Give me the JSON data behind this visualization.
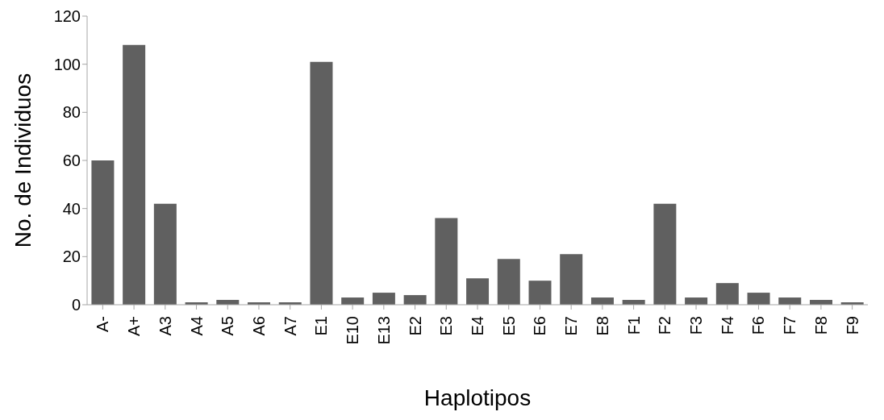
{
  "chart_data": {
    "type": "bar",
    "xlabel": "Haplotipos",
    "ylabel": "No. de Individuos",
    "categories": [
      "A-",
      "A+",
      "A3",
      "A4",
      "A5",
      "A6",
      "A7",
      "E1",
      "E10",
      "E13",
      "E2",
      "E3",
      "E4",
      "E5",
      "E6",
      "E7",
      "E8",
      "F1",
      "F2",
      "F3",
      "F4",
      "F6",
      "F7",
      "F8",
      "F9"
    ],
    "values": [
      60,
      108,
      42,
      1,
      2,
      1,
      1,
      101,
      3,
      5,
      4,
      36,
      11,
      19,
      10,
      21,
      3,
      2,
      42,
      3,
      9,
      5,
      3,
      2,
      1
    ],
    "color": "#606060",
    "ylim": [
      0,
      120
    ],
    "yticks": [
      0,
      20,
      40,
      60,
      80,
      100,
      120
    ],
    "grid": false,
    "legend": false
  }
}
